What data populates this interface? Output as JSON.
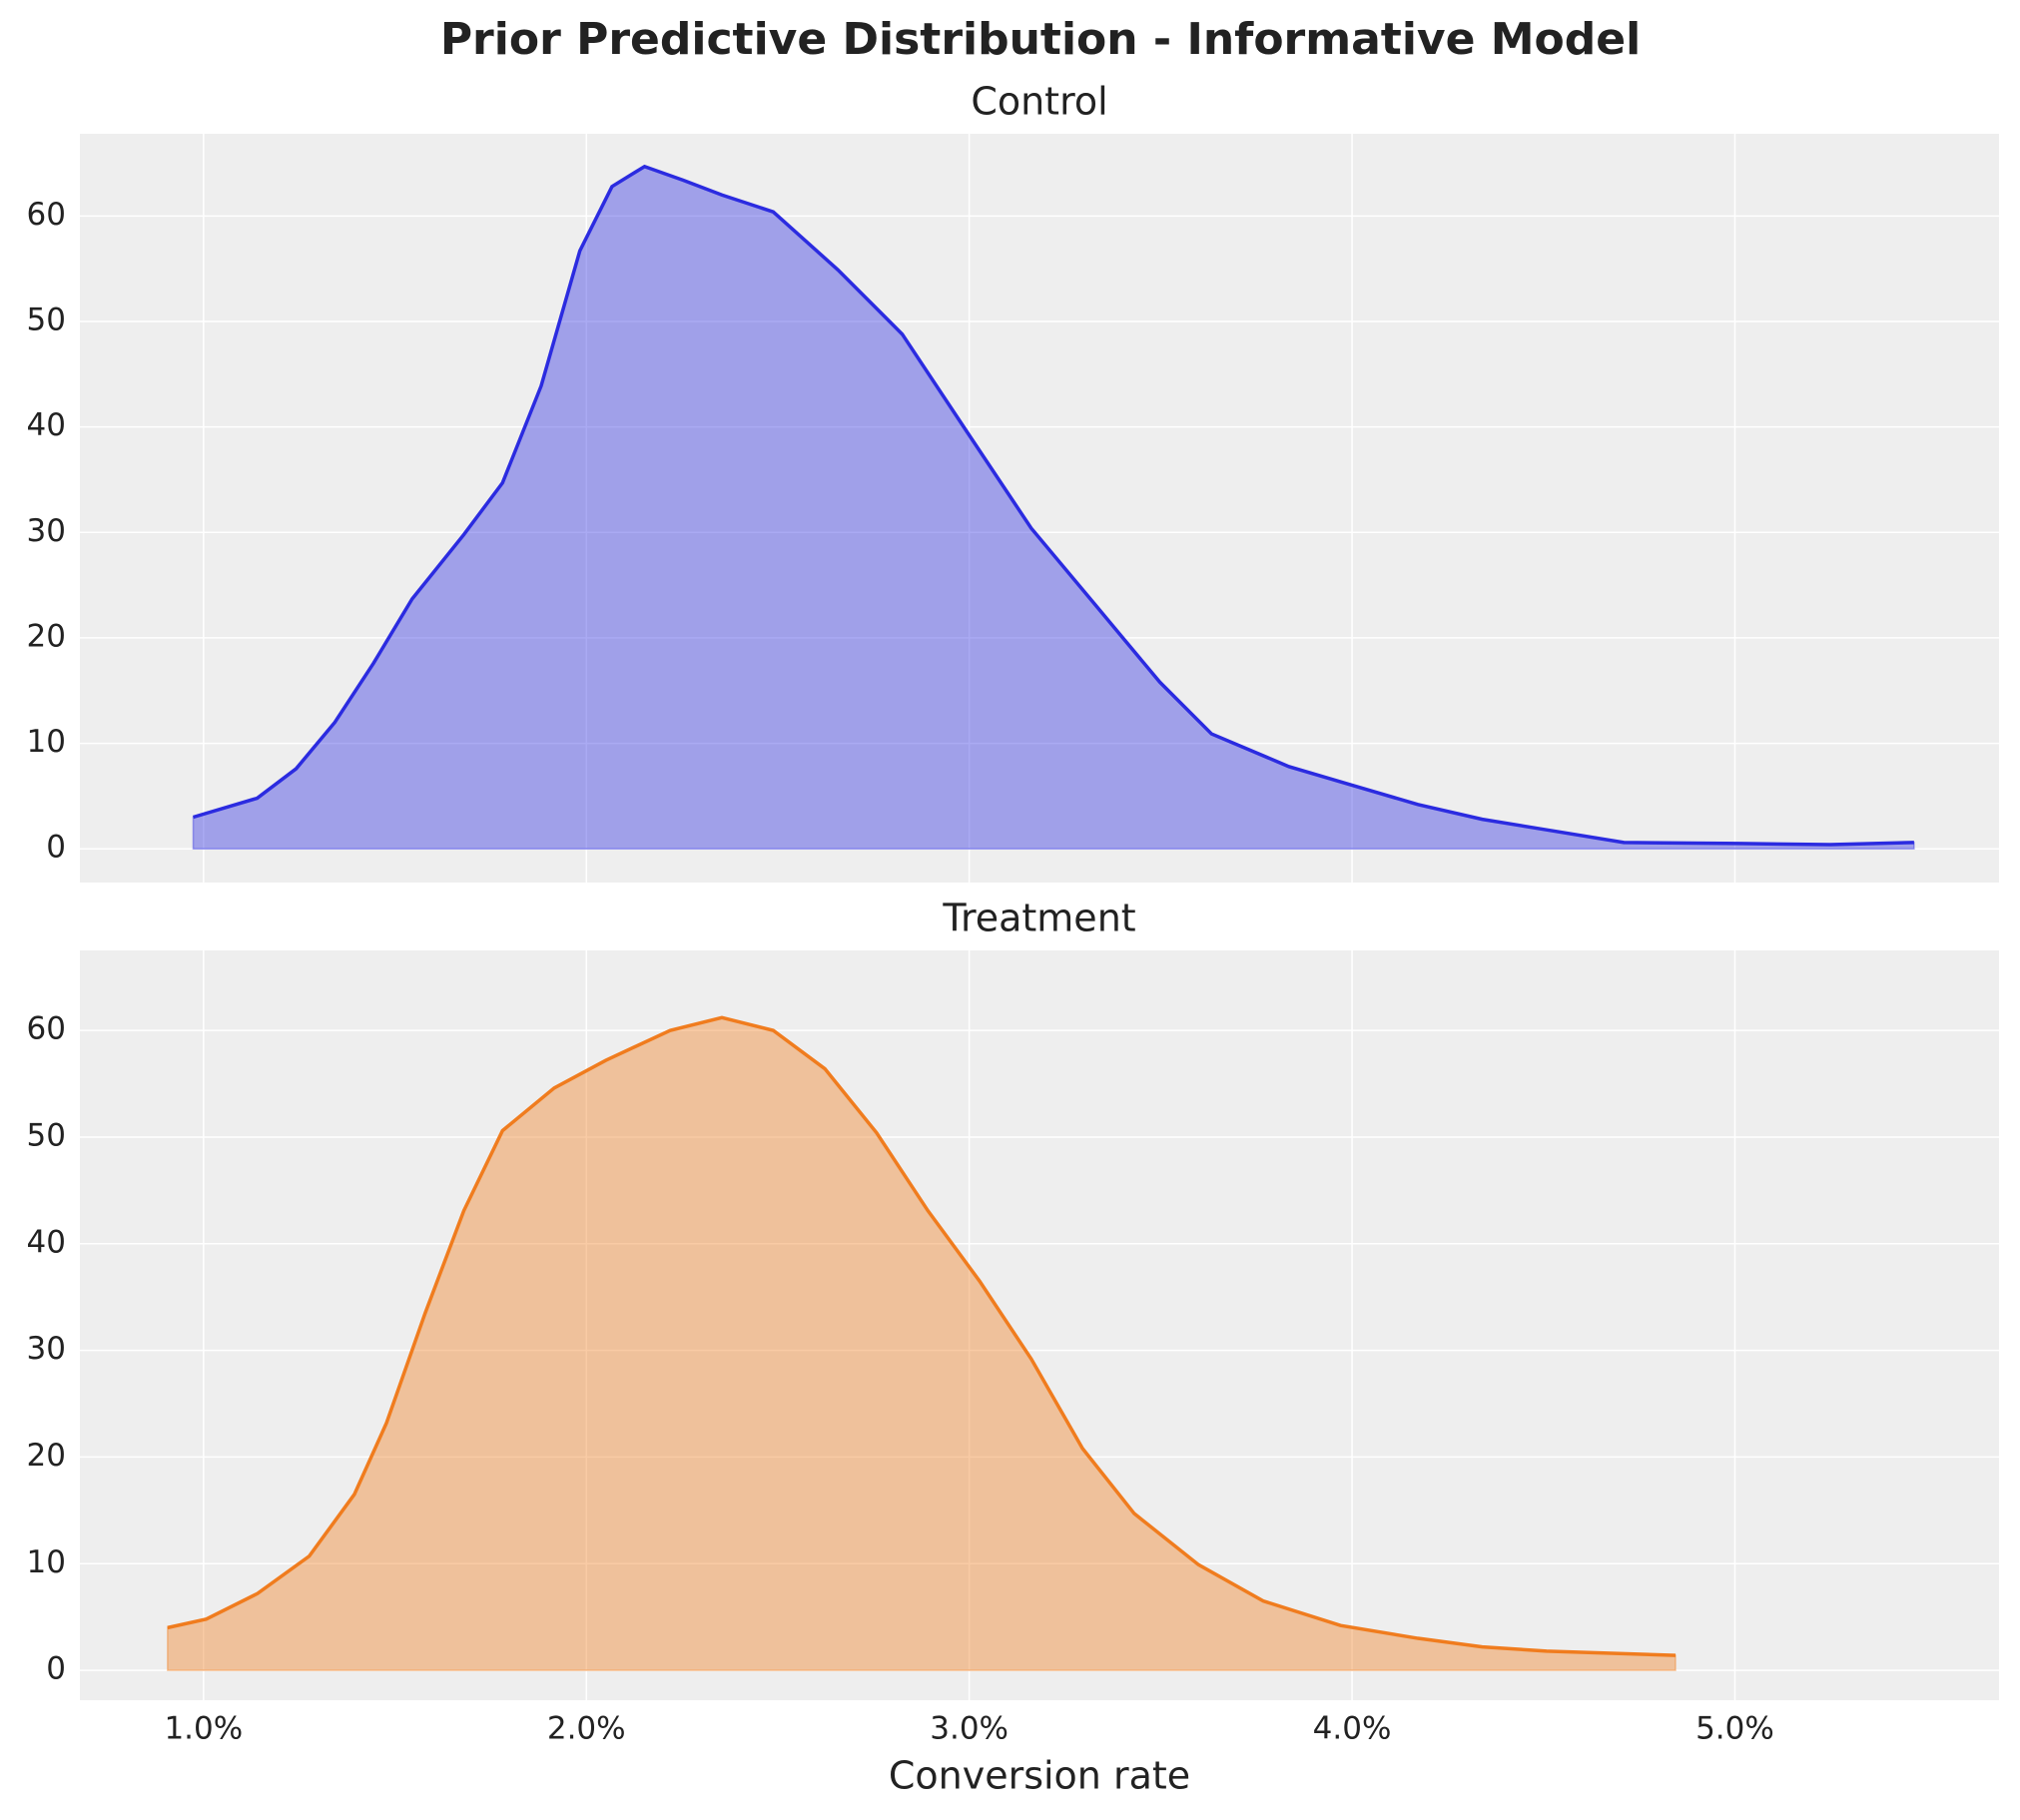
{
  "title": "Prior Predictive Distribution - Informative Model",
  "chart_data": [
    {
      "type": "area",
      "title": "Control",
      "color": "#2b2be0",
      "x": [
        0.00973,
        0.0114,
        0.01242,
        0.01343,
        0.01444,
        0.01545,
        0.0168,
        0.01781,
        0.01882,
        0.01983,
        0.02067,
        0.02152,
        0.02253,
        0.02354,
        0.02488,
        0.02657,
        0.02825,
        0.02993,
        0.03162,
        0.0333,
        0.03498,
        0.03633,
        0.03835,
        0.04003,
        0.04172,
        0.0434,
        0.04508,
        0.0471,
        0.05013,
        0.05249,
        0.05468
      ],
      "values": [
        3,
        4.8,
        7.6,
        12,
        17.6,
        23.7,
        29.8,
        34.7,
        43.9,
        56.7,
        62.8,
        64.7,
        63.4,
        62,
        60.4,
        54.9,
        48.8,
        39.6,
        30.4,
        23.1,
        15.8,
        10.9,
        7.8,
        6,
        4.2,
        2.8,
        1.8,
        0.6,
        0.5,
        0.4,
        0.6
      ],
      "xlim": [
        0.00677,
        0.0569
      ],
      "ylim": [
        -3.2,
        67.8
      ],
      "xticks": [
        0.01,
        0.02,
        0.03,
        0.04,
        0.05
      ],
      "yticks": [
        0,
        10,
        20,
        30,
        40,
        50,
        60
      ],
      "grid": true
    },
    {
      "type": "area",
      "title": "Treatment",
      "color": "#f07c1e",
      "xlabel": "Conversion rate",
      "x": [
        0.00906,
        0.01007,
        0.01141,
        0.01276,
        0.01394,
        0.01478,
        0.01579,
        0.0168,
        0.01781,
        0.01916,
        0.02051,
        0.02219,
        0.02354,
        0.02488,
        0.02623,
        0.02758,
        0.02892,
        0.03027,
        0.03162,
        0.03296,
        0.03431,
        0.03599,
        0.03768,
        0.0397,
        0.04172,
        0.0434,
        0.04508,
        0.04845
      ],
      "values": [
        4,
        4.8,
        7.2,
        10.7,
        16.5,
        23.2,
        33.5,
        43.1,
        50.6,
        54.6,
        57.2,
        60,
        61.2,
        60,
        56.4,
        50.4,
        43.1,
        36.5,
        29.2,
        20.8,
        14.7,
        9.9,
        6.5,
        4.2,
        3,
        2.2,
        1.8,
        1.4
      ],
      "xlim": [
        0.00677,
        0.0569
      ],
      "ylim": [
        -2.8,
        67.5
      ],
      "xticks": [
        {
          "value": 0.01,
          "label": "1.0%"
        },
        {
          "value": 0.02,
          "label": "2.0%"
        },
        {
          "value": 0.03,
          "label": "3.0%"
        },
        {
          "value": 0.04,
          "label": "4.0%"
        },
        {
          "value": 0.05,
          "label": "5.0%"
        }
      ],
      "yticks": [
        0,
        10,
        20,
        30,
        40,
        50,
        60
      ],
      "grid": true
    }
  ]
}
